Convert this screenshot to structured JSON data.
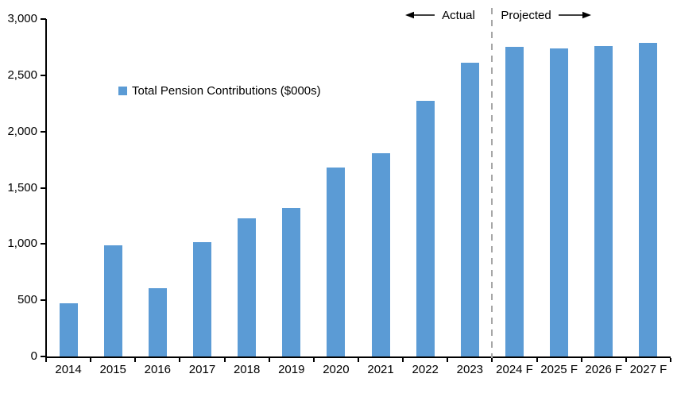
{
  "chart_data": {
    "type": "bar",
    "title": "",
    "categories": [
      "2014",
      "2015",
      "2016",
      "2017",
      "2018",
      "2019",
      "2020",
      "2021",
      "2022",
      "2023",
      "2024 F",
      "2025 F",
      "2026 F",
      "2027 F"
    ],
    "values": [
      470,
      990,
      610,
      1020,
      1230,
      1320,
      1680,
      1810,
      2270,
      2610,
      2750,
      2740,
      2760,
      2790
    ],
    "legend_label": "Total Pension Contributions ($000s)",
    "legend_position": "inside-upper-left",
    "xlabel": "",
    "ylabel": "",
    "ylim": [
      0,
      3000
    ],
    "yticks": [
      0,
      500,
      1000,
      1500,
      2000,
      2500,
      3000
    ],
    "ytick_labels": [
      "0",
      "500",
      "1,000",
      "1,500",
      "2,000",
      "2,500",
      "3,000"
    ],
    "grid": false,
    "bar_color": "#5B9BD5",
    "axis_color": "#000000",
    "divider": {
      "after_category": "2023",
      "style": "dashed",
      "color": "#A6A6A6"
    },
    "annotations": {
      "actual_label": "Actual",
      "projected_label": "Projected"
    }
  }
}
